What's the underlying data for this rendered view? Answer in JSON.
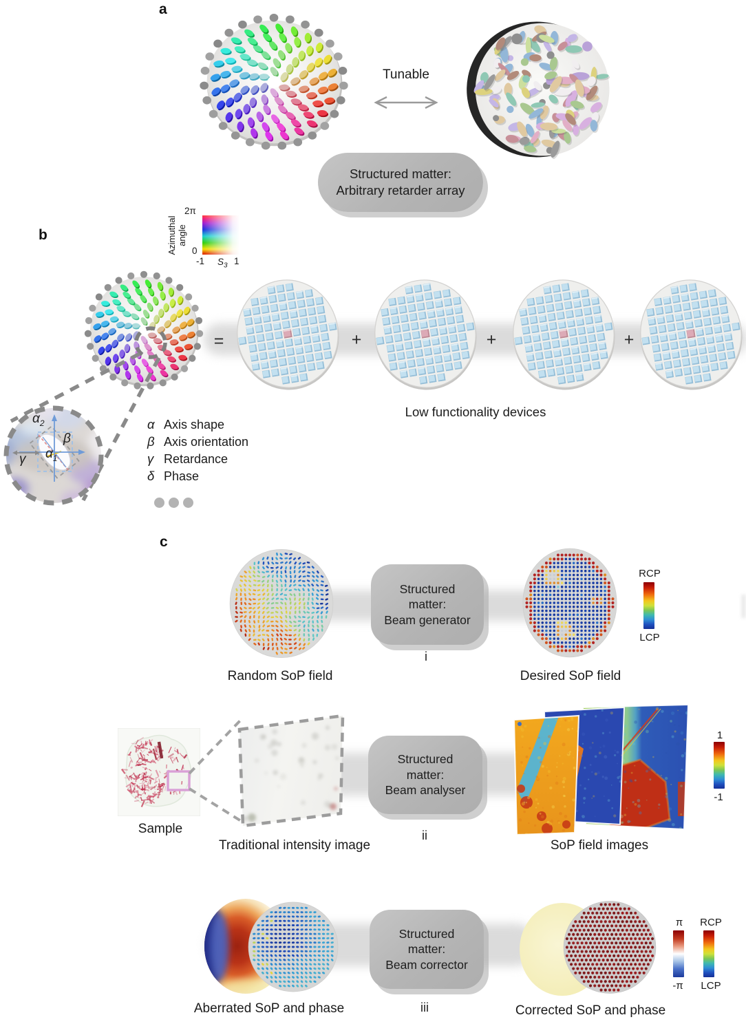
{
  "panel_a": {
    "label": "a",
    "tunable": "Tunable",
    "box1": "Structured matter:",
    "box2": "Arbitrary retarder array"
  },
  "panel_b": {
    "label": "b",
    "colormap": {
      "ymax": "2π",
      "ymin": "0",
      "ylabel1": "Azimuthal",
      "ylabel2": "angle",
      "xmin": "-1",
      "xsym": "S",
      "xsub": "3",
      "xmax": "1"
    },
    "equals": "=",
    "plus": "+",
    "low_label": "Low functionality devices",
    "inset": {
      "a2m": "α",
      "a2s": "2",
      "beta": "β",
      "a1m": "α",
      "a1s": "1",
      "gamma": "γ"
    },
    "legend": [
      {
        "sym": "α",
        "text": "Axis shape"
      },
      {
        "sym": "β",
        "text": "Axis orientation"
      },
      {
        "sym": "γ",
        "text": "Retardance"
      },
      {
        "sym": "δ",
        "text": "Phase"
      }
    ]
  },
  "panel_c": {
    "label": "c",
    "row_i": {
      "num": "i",
      "left_label": "Random SoP field",
      "box": [
        "Structured",
        "matter:",
        "Beam generator"
      ],
      "right_label": "Desired SoP field",
      "cbar_top": "RCP",
      "cbar_bottom": "LCP"
    },
    "row_ii": {
      "num": "ii",
      "sample_label": "Sample",
      "left_label": "Traditional intensity image",
      "box": [
        "Structured",
        "matter:",
        "Beam analyser"
      ],
      "right_label": "SoP field images",
      "cbar_top": "1",
      "cbar_bottom": "-1"
    },
    "row_iii": {
      "num": "iii",
      "left_label": "Aberrated SoP and phase",
      "box": [
        "Structured",
        "matter:",
        "Beam corrector"
      ],
      "right_label": "Corrected SoP and phase",
      "p_top": "π",
      "p_bottom": "-π",
      "c_top": "RCP",
      "c_bottom": "LCP"
    }
  },
  "colors": {
    "box_gray": "#b7b7b7",
    "band_gray": "#d5d5d5",
    "cube_blue": "#c2e0f0",
    "cube_blue_edge": "#8fb9d4",
    "cube_pink": "#dcaab6",
    "rim_gray": "#929292",
    "deep_blue": "#21409a",
    "ring_red": "#b22423",
    "swirl_orange": "#df8c2e",
    "swirl_yellow": "#ecc94b",
    "swirl_gray": "#c8cdd4",
    "yellow_disk": "#f6f1c3",
    "corrected_dot": "#8c1c1f",
    "pastel_palette": [
      "#c79098",
      "#b9a2d8",
      "#a9c890",
      "#ddd27e",
      "#9a9a9a",
      "#b28a7a",
      "#e2aec6",
      "#93b7d8",
      "#ccdf9e",
      "#f1eef0",
      "#c4b6e6",
      "#8fc8b4",
      "#d8b0e0",
      "#e0c9a0"
    ]
  }
}
